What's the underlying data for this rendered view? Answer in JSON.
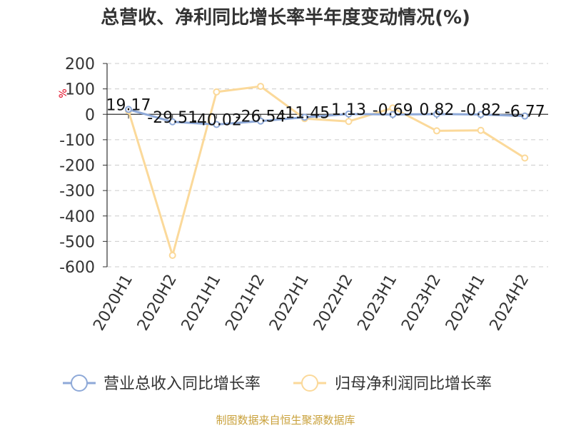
{
  "chart_data": {
    "type": "line",
    "title": "总营收、净利同比增长率半年度变动情况(%)",
    "unit": "%",
    "categories": [
      "2020H1",
      "2020H2",
      "2021H1",
      "2021H2",
      "2022H1",
      "2022H2",
      "2023H1",
      "2023H2",
      "2024H1",
      "2024H2"
    ],
    "ylim": [
      -600,
      200
    ],
    "yticks": [
      200,
      100,
      0,
      -100,
      -200,
      -300,
      -400,
      -500,
      -600
    ],
    "grid": true,
    "legend_position": "bottom",
    "series": [
      {
        "name": "营业总收入同比增长率",
        "color": "#8ea9d8",
        "values": [
          19.17,
          -29.51,
          -40.02,
          -26.54,
          -11.45,
          1.13,
          -0.69,
          0.82,
          -0.82,
          -6.77
        ],
        "labels": [
          "19.17",
          "-29.51",
          "-40.02",
          "-26.54",
          "-11.45",
          "1.13",
          "-0.69",
          "0.82",
          "-0.82",
          "-6.77"
        ]
      },
      {
        "name": "归母净利润同比增长率",
        "color": "#fbd99a",
        "values": [
          14,
          -555,
          88,
          110,
          -17,
          -28,
          25,
          -65,
          -63,
          -172
        ]
      }
    ]
  },
  "footer": {
    "source": "制图数据来自恒生聚源数据库"
  }
}
